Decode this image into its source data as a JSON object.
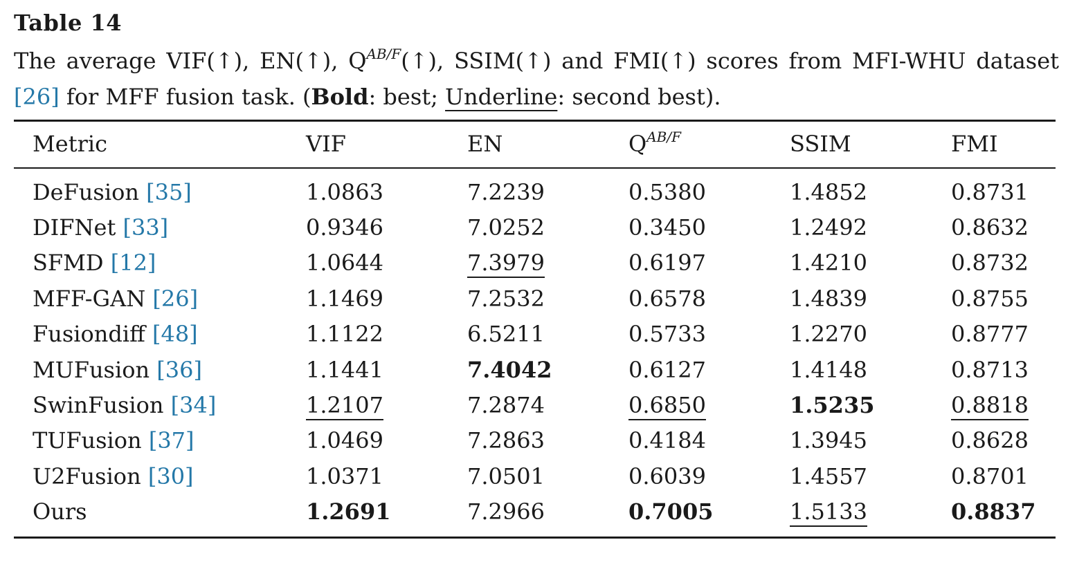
{
  "table_label": "Table 14",
  "caption": {
    "part1": "The average VIF(↑), EN(↑), Q",
    "sup": "AB/F",
    "part2": "(↑), SSIM(↑) and FMI(↑) scores from MFI-WHU dataset",
    "ref": "[26]",
    "part3": " for MFF fusion task. (",
    "bold_word": "Bold",
    "part4": ": best; ",
    "underline_word": "Underline",
    "part5": ": second best)."
  },
  "table": {
    "headers": [
      "Metric",
      "VIF",
      "EN",
      "Q",
      "SSIM",
      "FMI"
    ],
    "header_q_sup": "AB/F",
    "rows": [
      {
        "method": "DeFusion",
        "ref": "[35]",
        "values": [
          "1.0863",
          "7.2239",
          "0.5380",
          "1.4852",
          "0.8731"
        ],
        "styles": [
          "",
          "",
          "",
          "",
          ""
        ]
      },
      {
        "method": "DIFNet",
        "ref": "[33]",
        "values": [
          "0.9346",
          "7.0252",
          "0.3450",
          "1.2492",
          "0.8632"
        ],
        "styles": [
          "",
          "",
          "",
          "",
          ""
        ]
      },
      {
        "method": "SFMD",
        "ref": "[12]",
        "values": [
          "1.0644",
          "7.3979",
          "0.6197",
          "1.4210",
          "0.8732"
        ],
        "styles": [
          "",
          "second",
          "",
          "",
          ""
        ]
      },
      {
        "method": "MFF-GAN",
        "ref": "[26]",
        "values": [
          "1.1469",
          "7.2532",
          "0.6578",
          "1.4839",
          "0.8755"
        ],
        "styles": [
          "",
          "",
          "",
          "",
          ""
        ]
      },
      {
        "method": "Fusiondiff",
        "ref": "[48]",
        "values": [
          "1.1122",
          "6.5211",
          "0.5733",
          "1.2270",
          "0.8777"
        ],
        "styles": [
          "",
          "",
          "",
          "",
          ""
        ]
      },
      {
        "method": "MUFusion",
        "ref": "[36]",
        "values": [
          "1.1441",
          "7.4042",
          "0.6127",
          "1.4148",
          "0.8713"
        ],
        "styles": [
          "",
          "best",
          "",
          "",
          ""
        ]
      },
      {
        "method": "SwinFusion",
        "ref": "[34]",
        "values": [
          "1.2107",
          "7.2874",
          "0.6850",
          "1.5235",
          "0.8818"
        ],
        "styles": [
          "second",
          "",
          "second",
          "best",
          "second"
        ]
      },
      {
        "method": "TUFusion",
        "ref": "[37]",
        "values": [
          "1.0469",
          "7.2863",
          "0.4184",
          "1.3945",
          "0.8628"
        ],
        "styles": [
          "",
          "",
          "",
          "",
          ""
        ]
      },
      {
        "method": "U2Fusion",
        "ref": "[30]",
        "values": [
          "1.0371",
          "7.0501",
          "0.6039",
          "1.4557",
          "0.8701"
        ],
        "styles": [
          "",
          "",
          "",
          "",
          ""
        ]
      },
      {
        "method": "Ours",
        "ref": "",
        "values": [
          "1.2691",
          "7.2966",
          "0.7005",
          "1.5133",
          "0.8837"
        ],
        "styles": [
          "best",
          "",
          "best",
          "second",
          "best"
        ]
      }
    ]
  },
  "colors": {
    "text": "#1a1a1a",
    "reference_link": "#2478a8",
    "background": "#ffffff"
  }
}
